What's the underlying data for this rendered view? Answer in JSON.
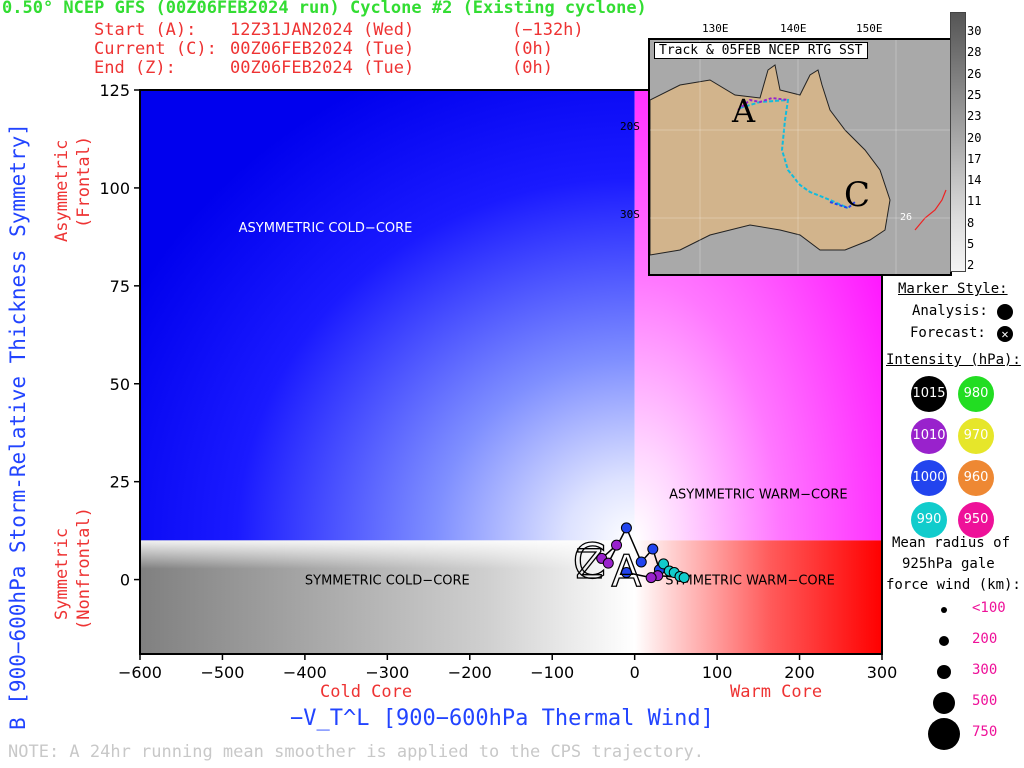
{
  "header": {
    "title": "0.50° NCEP GFS (00Z06FEB2024 run) Cyclone #2 (Existing cyclone)",
    "start_label": "Start (A):",
    "start_time": "12Z31JAN2024 (Wed)",
    "start_offset": "(−132h)",
    "current_label": "Current (C):",
    "current_time": "00Z06FEB2024 (Tue)",
    "current_offset": "(0h)",
    "end_label": "End (Z):",
    "end_time": "00Z06FEB2024 (Tue)",
    "end_offset": "(0h)"
  },
  "note": "NOTE:  A 24hr running mean smoother is applied to the CPS trajectory.",
  "colors": {
    "title_green": "#33dd33",
    "header_red": "#ee3333",
    "axis_blue": "#2244ff",
    "cold_asym": "#0000ee",
    "warm_asym": "#ff00ff",
    "warm_sym": "#ff0000",
    "cold_sym": "#808080"
  },
  "chart_data": {
    "type": "scatter",
    "xlabel": "−V_T^L [900−600hPa Thermal Wind]",
    "ylabel": "B [900−600hPa Storm-Relative Thickness Symmetry]",
    "xlim": [
      -600,
      300
    ],
    "ylim": [
      -19,
      125
    ],
    "x_ticks": [
      -600,
      -500,
      -400,
      -300,
      -200,
      -100,
      0,
      100,
      200,
      300
    ],
    "y_ticks": [
      0,
      25,
      50,
      75,
      100,
      125
    ],
    "x_tick_labels": [
      "−600",
      "−500",
      "−400",
      "−300",
      "−200",
      "−100",
      "0",
      "100",
      "200",
      "300"
    ],
    "y_tick_labels": [
      "0",
      "25",
      "50",
      "75",
      "100",
      "125"
    ],
    "x_side_labels": {
      "cold": "Cold Core",
      "warm": "Warm Core"
    },
    "y_side_labels": {
      "asym": [
        "Asymmetric",
        "(Frontal)"
      ],
      "sym": [
        "Symmetric",
        "(Nonfrontal)"
      ]
    },
    "quadrant_labels": [
      {
        "text": "ASYMMETRIC COLD−CORE",
        "x": -375,
        "y": 90
      },
      {
        "text": "ASYMMETRIC WARM−CORE",
        "x": 150,
        "y": 22
      },
      {
        "text": "SYMMETRIC COLD−CORE",
        "x": -300,
        "y": 0
      },
      {
        "text": "SYMMETRIC WARM−CORE",
        "x": 140,
        "y": 0
      }
    ],
    "b_threshold": 10,
    "trajectory": [
      {
        "x": -22,
        "y": 8.8,
        "intensity": 1010
      },
      {
        "x": -40,
        "y": 5.4,
        "intensity": 1010
      },
      {
        "x": -32,
        "y": 4.2,
        "intensity": 1010
      },
      {
        "x": -10,
        "y": 13.2,
        "intensity": 1000
      },
      {
        "x": 8,
        "y": 4.5,
        "intensity": 1000
      },
      {
        "x": 22,
        "y": 7.8,
        "intensity": 1000
      },
      {
        "x": 30,
        "y": 2.5,
        "intensity": 1000
      },
      {
        "x": 35,
        "y": 4.0,
        "intensity": 990
      },
      {
        "x": 42,
        "y": 2.2,
        "intensity": 990
      },
      {
        "x": 48,
        "y": 1.8,
        "intensity": 990
      },
      {
        "x": 55,
        "y": 0.8,
        "intensity": 990
      },
      {
        "x": 60,
        "y": 0.5,
        "intensity": 990
      },
      {
        "x": 28,
        "y": 1.0,
        "intensity": 1010
      },
      {
        "x": 20,
        "y": 0.5,
        "intensity": 1010
      },
      {
        "x": -10,
        "y": 1.8,
        "intensity": 1000
      }
    ],
    "start_marker": {
      "letter": "A",
      "x": -10,
      "y": 2
    },
    "current_marker": {
      "letter": "C",
      "x": -55,
      "y": 4
    },
    "end_marker": {
      "letter": "Z",
      "x": -55,
      "y": 4
    }
  },
  "inset_map": {
    "title": "Track & 05FEB NCEP RTG SST",
    "lon_labels": [
      "130E",
      "140E",
      "150E"
    ],
    "lat_labels": [
      "20S",
      "30S"
    ],
    "sst_contour_label": "26",
    "start_letter": "A",
    "current_letter": "C",
    "colorbar_values": [
      "30",
      "28",
      "26",
      "25",
      "23",
      "20",
      "17",
      "14",
      "11",
      "8",
      "5",
      "2"
    ]
  },
  "legend": {
    "marker_style_title": "Marker Style:",
    "analysis_label": "Analysis:",
    "forecast_label": "Forecast:",
    "intensity_title": "Intensity (hPa):",
    "intensities": [
      {
        "value": "1015",
        "color": "#000000"
      },
      {
        "value": "980",
        "color": "#22dd22"
      },
      {
        "value": "1010",
        "color": "#9922cc"
      },
      {
        "value": "970",
        "color": "#e6e62a"
      },
      {
        "value": "1000",
        "color": "#2244ee"
      },
      {
        "value": "960",
        "color": "#ee8833"
      },
      {
        "value": "990",
        "color": "#11cccc"
      },
      {
        "value": "950",
        "color": "#ee1199"
      }
    ],
    "radius_title_1": "Mean radius of",
    "radius_title_2": "925hPa gale",
    "radius_title_3": "force wind (km):",
    "radii": [
      "<100",
      "200",
      "300",
      "500",
      "750"
    ]
  }
}
